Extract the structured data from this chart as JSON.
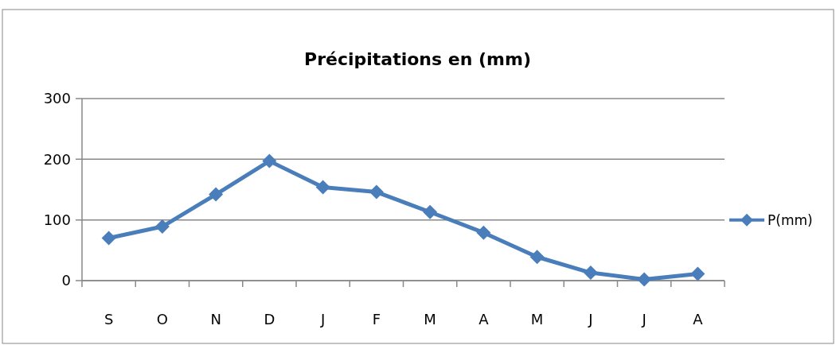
{
  "chart_data": {
    "type": "line",
    "title": "Précipitations en (mm)",
    "categories": [
      "S",
      "O",
      "N",
      "D",
      "J",
      "F",
      "M",
      "A",
      "M",
      "J",
      "J",
      "A"
    ],
    "series": [
      {
        "name": "P(mm)",
        "color": "#4a7ebb",
        "values": [
          70,
          89,
          142,
          197,
          154,
          146,
          113,
          79,
          39,
          13,
          2,
          11
        ]
      }
    ],
    "ylim": [
      0,
      300
    ],
    "yticks": [
      0,
      100,
      200,
      300
    ],
    "grid": "y",
    "legend": "right",
    "marker": "diamond",
    "line_style": "solid"
  }
}
